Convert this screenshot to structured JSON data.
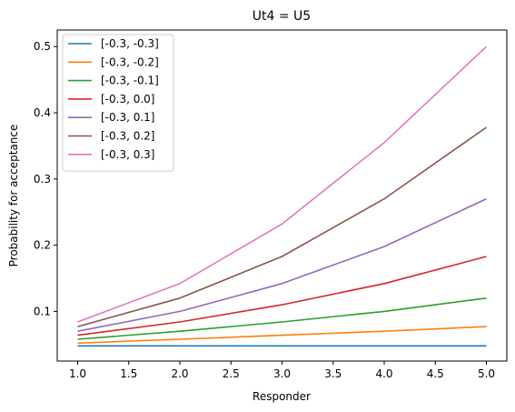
{
  "chart_data": {
    "type": "line",
    "title": "Ut4 = U5",
    "xlabel": "Responder",
    "ylabel": "Probability for acceptance",
    "x": [
      1,
      2,
      3,
      4,
      5
    ],
    "xlim": [
      0.8,
      5.2
    ],
    "ylim": [
      0.025,
      0.525
    ],
    "xticks": [
      "1.0",
      "1.5",
      "2.0",
      "2.5",
      "3.0",
      "3.5",
      "4.0",
      "4.5",
      "5.0"
    ],
    "yticks": [
      "0.1",
      "0.2",
      "0.3",
      "0.4",
      "0.5"
    ],
    "grid": false,
    "legend_position": "top-left",
    "series": [
      {
        "name": "[-0.3, -0.3]",
        "color": "#1f77b4",
        "values": [
          0.048,
          0.048,
          0.048,
          0.048,
          0.048
        ]
      },
      {
        "name": "[-0.3, -0.2]",
        "color": "#ff7f0e",
        "values": [
          0.052,
          0.058,
          0.064,
          0.07,
          0.077
        ]
      },
      {
        "name": "[-0.3, -0.1]",
        "color": "#2ca02c",
        "values": [
          0.058,
          0.07,
          0.084,
          0.1,
          0.12
        ]
      },
      {
        "name": "[-0.3, 0.0]",
        "color": "#d62728",
        "values": [
          0.064,
          0.084,
          0.11,
          0.142,
          0.183
        ]
      },
      {
        "name": "[-0.3, 0.1]",
        "color": "#9467bd",
        "values": [
          0.07,
          0.1,
          0.142,
          0.198,
          0.27
        ]
      },
      {
        "name": "[-0.3, 0.2]",
        "color": "#8c564b",
        "values": [
          0.077,
          0.12,
          0.183,
          0.27,
          0.378
        ]
      },
      {
        "name": "[-0.3, 0.3]",
        "color": "#e377c2",
        "values": [
          0.084,
          0.142,
          0.232,
          0.355,
          0.5
        ]
      }
    ]
  }
}
